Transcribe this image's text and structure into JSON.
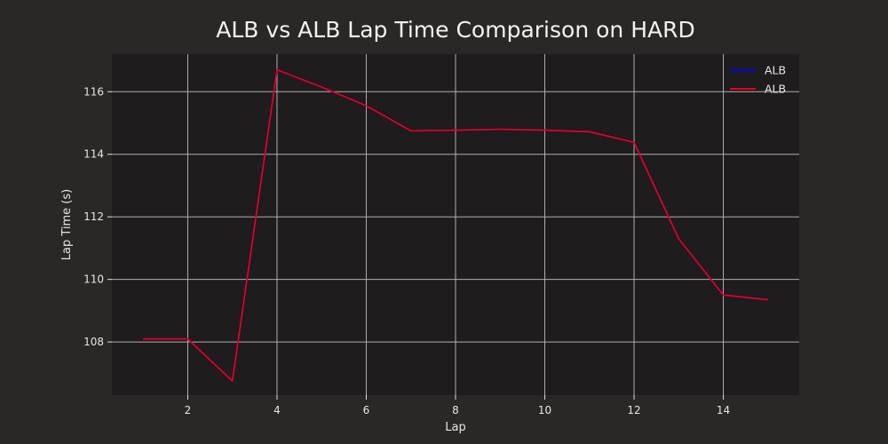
{
  "chart_data": {
    "type": "line",
    "title": "ALB vs ALB Lap Time Comparison on HARD",
    "xlabel": "Lap",
    "ylabel": "Lap Time (s)",
    "xlim": [
      0.3,
      15.7
    ],
    "ylim": [
      106.3,
      117.2
    ],
    "xticks": [
      2,
      4,
      6,
      8,
      10,
      12,
      14
    ],
    "yticks": [
      108,
      110,
      112,
      114,
      116
    ],
    "grid": true,
    "legend_position": "top-right",
    "colors": {
      "background": "#2a2727",
      "plot_background": "#1e1c1c"
    },
    "series": [
      {
        "name": "ALB",
        "color": "#0000ff",
        "x": [
          1,
          2,
          3,
          4,
          5,
          6,
          7,
          8,
          9,
          10,
          11,
          12,
          13,
          14,
          15
        ],
        "y": [
          108.1,
          108.1,
          106.75,
          116.7,
          116.15,
          115.55,
          114.75,
          114.77,
          114.8,
          114.77,
          114.72,
          114.38,
          111.3,
          109.5,
          109.35
        ]
      },
      {
        "name": "ALB",
        "color": "#e8001c",
        "x": [
          1,
          2,
          3,
          4,
          5,
          6,
          7,
          8,
          9,
          10,
          11,
          12,
          13,
          14,
          15
        ],
        "y": [
          108.1,
          108.1,
          106.75,
          116.7,
          116.15,
          115.55,
          114.75,
          114.77,
          114.8,
          114.77,
          114.72,
          114.38,
          111.3,
          109.5,
          109.35
        ]
      }
    ]
  }
}
